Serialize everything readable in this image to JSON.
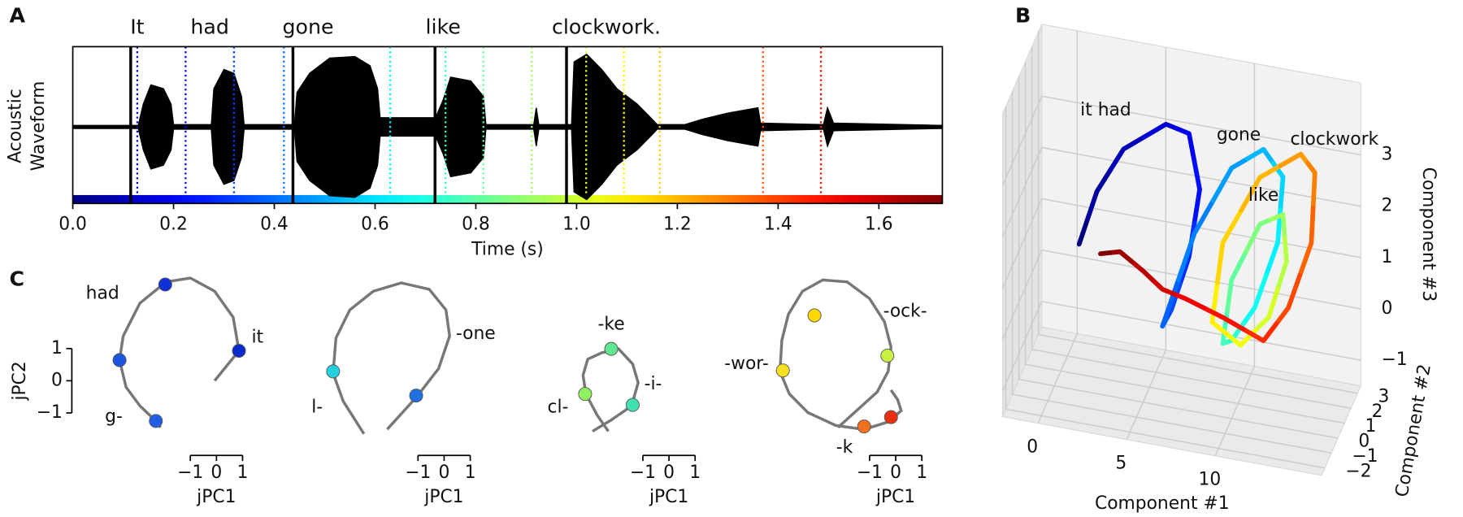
{
  "chart_data": [
    {
      "type": "waveform",
      "panel": "A",
      "ylabel": [
        "Acoustic",
        "Waveform"
      ],
      "xlabel": "Time (s)",
      "xlim": [
        0,
        1.726
      ],
      "xticks": [
        {
          "value": 0,
          "label": "0.0"
        },
        {
          "value": 0.2,
          "label": "0.2"
        },
        {
          "value": 0.4,
          "label": "0.4"
        },
        {
          "value": 0.6,
          "label": "0.6"
        },
        {
          "value": 0.8,
          "label": "0.8"
        },
        {
          "value": 1.0,
          "label": "1.0"
        },
        {
          "value": 1.2,
          "label": "1.2"
        },
        {
          "value": 1.4,
          "label": "1.4"
        },
        {
          "value": 1.6,
          "label": "1.6"
        }
      ],
      "words": [
        {
          "text": "It",
          "time": 0.128
        },
        {
          "text": "had",
          "time": 0.272
        },
        {
          "text": "gone",
          "time": 0.467
        },
        {
          "text": "like",
          "time": 0.735
        },
        {
          "text": "clockwork.",
          "time": 1.059
        }
      ],
      "word_boundaries": [
        0.115,
        0.437,
        0.719,
        0.98
      ],
      "syllable_markers": [
        0.128,
        0.224,
        0.32,
        0.419,
        0.63,
        0.74,
        0.815,
        0.911,
        1.019,
        1.094,
        1.165,
        1.37,
        1.485
      ],
      "colormap": "jet",
      "envelope": {
        "x": [
          0,
          0.13,
          0.14,
          0.155,
          0.18,
          0.195,
          0.2,
          0.275,
          0.28,
          0.3,
          0.32,
          0.335,
          0.34,
          0.44,
          0.445,
          0.47,
          0.51,
          0.56,
          0.59,
          0.605,
          0.61,
          0.72,
          0.735,
          0.75,
          0.79,
          0.815,
          0.82,
          0.915,
          0.92,
          0.925,
          0.99,
          0.995,
          1.02,
          1.05,
          1.08,
          1.12,
          1.15,
          1.16,
          1.215,
          1.25,
          1.3,
          1.36,
          1.365,
          1.49,
          1.498,
          1.51,
          1.726
        ],
        "values": [
          0.02,
          0.02,
          0.3,
          0.55,
          0.5,
          0.3,
          0.03,
          0.03,
          0.5,
          0.75,
          0.7,
          0.4,
          0.03,
          0.03,
          0.45,
          0.7,
          0.9,
          0.92,
          0.8,
          0.5,
          0.12,
          0.12,
          0.35,
          0.65,
          0.6,
          0.4,
          0.03,
          0.03,
          0.25,
          0.03,
          0.03,
          0.85,
          0.95,
          0.75,
          0.5,
          0.3,
          0.1,
          0.03,
          0.03,
          0.1,
          0.18,
          0.25,
          0.05,
          0.03,
          0.25,
          0.05,
          0.02
        ]
      }
    },
    {
      "type": "trajectory3d",
      "panel": "B",
      "xlabel": "Component #1",
      "ylabel": "Component #2",
      "zlabel": "Component #3",
      "xlim": [
        -2,
        16
      ],
      "ylim": [
        -2.5,
        3.5
      ],
      "zlim": [
        -1.5,
        4.4
      ],
      "xticks": [
        0,
        5,
        10
      ],
      "yticks": [
        {
          "value": -2,
          "label": "−2"
        },
        {
          "value": -1,
          "label": "−1"
        },
        0,
        1,
        2,
        3
      ],
      "zticks": [
        {
          "value": -1,
          "label": "−1"
        },
        0,
        1,
        2,
        3
      ],
      "grid": true,
      "colormap": "jet",
      "c1": [
        1.4,
        2.4,
        3.9,
        6.3,
        7.6,
        8.2,
        7.6,
        6.6,
        6.1,
        7.9,
        10.0,
        11.8,
        12.9,
        12.6,
        11.3,
        10.0,
        9.5,
        10.0,
        11.6,
        12.9,
        13.1,
        12.1,
        10.5,
        8.9,
        9.5,
        11.6,
        13.9,
        14.7,
        14.5,
        13.2,
        11.8,
        9.5,
        7.4,
        6.1,
        5.0,
        3.7,
        2.6
      ],
      "c2": [
        0,
        0,
        0,
        0,
        0,
        0,
        0,
        0,
        0,
        0,
        0,
        0,
        0,
        0,
        0,
        0,
        0,
        0,
        0,
        0,
        0,
        0,
        0,
        0,
        0,
        0,
        0,
        0,
        0,
        0,
        0,
        0,
        0,
        0,
        0,
        0,
        0
      ],
      "c3": [
        1.35,
        2.44,
        3.36,
        4.0,
        3.9,
        2.85,
        1.5,
        0.4,
        0.05,
        1.97,
        3.38,
        3.86,
        3.39,
        2.09,
        0.74,
        0.02,
        -0.07,
        1.2,
        2.39,
        2.66,
        1.76,
        0.61,
        -0.04,
        0.31,
        1.89,
        3.3,
        3.9,
        3.59,
        2.21,
        0.86,
        0.13,
        0.44,
        0.67,
        0.77,
        1.06,
        1.35,
        1.24
      ],
      "annotations": [
        {
          "text": "it had",
          "c1": 2.9,
          "c2": 0,
          "c3": 4.05
        },
        {
          "text": "gone",
          "c1": 10.4,
          "c2": 0,
          "c3": 4.04
        },
        {
          "text": "clockwork",
          "c1": 15.8,
          "c2": 0,
          "c3": 4.3
        },
        {
          "text": "like",
          "c1": 11.8,
          "c2": 0,
          "c3": 2.95
        }
      ]
    },
    {
      "type": "jpc",
      "panel": "C",
      "xlabel": "jPC1",
      "ylabel": "jPC2",
      "color": "#777777",
      "xticks": [
        {
          "value": -1,
          "label": "−1"
        },
        0,
        1
      ],
      "yticks": [
        {
          "value": -1,
          "label": "−1"
        },
        0,
        1
      ],
      "subplots": [
        {
          "x": [
            -0.07,
            0.86,
            0.64,
            -0.07,
            -1.0,
            -1.93,
            -2.93,
            -3.57,
            -3.71,
            -3.46,
            -2.93,
            -2.32,
            -2.14
          ],
          "y": [
            0,
            0.93,
            1.97,
            2.78,
            3.19,
            3.07,
            2.41,
            1.39,
            0.64,
            -0.2,
            -0.78,
            -1.25,
            -1.45
          ],
          "dots": {
            "x": [
              0.86,
              -1.96,
              -3.71,
              -2.32
            ],
            "y": [
              0.93,
              2.99,
              0.64,
              -1.25
            ],
            "colors": [
              "#0a2ad0",
              "#1030d8",
              "#1a55e0",
              "#1e5ee6"
            ]
          },
          "labels": [
            {
              "text": "had",
              "x": -4.36,
              "y": 2.7
            },
            {
              "text": "it",
              "x": 1.57,
              "y": 1.33
            },
            {
              "text": "g-",
              "x": -3.93,
              "y": -1.13
            }
          ]
        },
        {
          "x": [
            -3.07,
            -3.86,
            -4.25,
            -4.14,
            -3.61,
            -2.71,
            -1.64,
            -0.57,
            0.07,
            0.21,
            -0.21,
            -1.04,
            -2.18
          ],
          "y": [
            -1.65,
            -0.64,
            0.23,
            1.33,
            2.2,
            2.78,
            3.04,
            2.84,
            2.2,
            1.39,
            0.38,
            -0.49,
            -1.51
          ],
          "dots": {
            "x": [
              -4.25,
              -1.07
            ],
            "y": [
              0.29,
              -0.46
            ],
            "colors": [
              "#22d0e0",
              "#1e6fe0"
            ]
          },
          "labels": [
            {
              "text": "-one",
              "x": 1.21,
              "y": 1.45
            },
            {
              "text": "l-",
              "x": -4.86,
              "y": -0.84
            }
          ]
        },
        {
          "x": [
            -2.93,
            -2.21,
            -1.43,
            -1.18,
            -1.39,
            -1.93,
            -2.57,
            -3.11,
            -3.29,
            -3.18,
            -2.75,
            -2.32
          ],
          "y": [
            -1.57,
            -1.22,
            -0.78,
            -0.06,
            0.52,
            0.99,
            0.87,
            0.67,
            0.17,
            -0.41,
            -1.07,
            -1.57
          ],
          "dots": {
            "x": [
              -2.21,
              -3.21,
              -1.39
            ],
            "y": [
              0.99,
              -0.41,
              -0.75
            ],
            "colors": [
              "#60e890",
              "#90f060",
              "#40e0b0"
            ]
          },
          "labels": [
            {
              "text": "-ke",
              "x": -2.21,
              "y": 1.74
            },
            {
              "text": "-i-",
              "x": -0.61,
              "y": -0.12
            },
            {
              "text": "cl-",
              "x": -4.25,
              "y": -0.84
            }
          ]
        },
        {
          "x": [
            -2.21,
            -0.71,
            -0.29,
            -0.18,
            -0.43,
            -1.0,
            -1.86,
            -2.79,
            -3.57,
            -4.11,
            -4.36,
            -4.43,
            -4.07,
            -3.36,
            -2.29,
            -1.21,
            -0.29,
            0.21,
            0.07,
            -0.18
          ],
          "y": [
            -1.45,
            -0.35,
            0.29,
            1.04,
            1.83,
            2.55,
            3.07,
            3.13,
            2.78,
            2.06,
            1.25,
            0.29,
            -0.41,
            -0.99,
            -1.39,
            -1.51,
            -1.28,
            -0.93,
            -0.58,
            -0.29
          ],
          "dots": {
            "x": [
              -3.11,
              -0.32,
              -4.32,
              -1.21,
              -0.18
            ],
            "y": [
              2.03,
              0.78,
              0.32,
              -1.42,
              -1.13
            ],
            "colors": [
              "#ffd800",
              "#c8f040",
              "#f8e020",
              "#f07020",
              "#e83010"
            ]
          },
          "labels": [
            {
              "text": "-ock-",
              "x": 0.36,
              "y": 2.14
            },
            {
              "text": "-wor-",
              "x": -5.71,
              "y": 0.52
            },
            {
              "text": "-k",
              "x": -1.96,
              "y": -2.09
            }
          ]
        }
      ]
    }
  ]
}
